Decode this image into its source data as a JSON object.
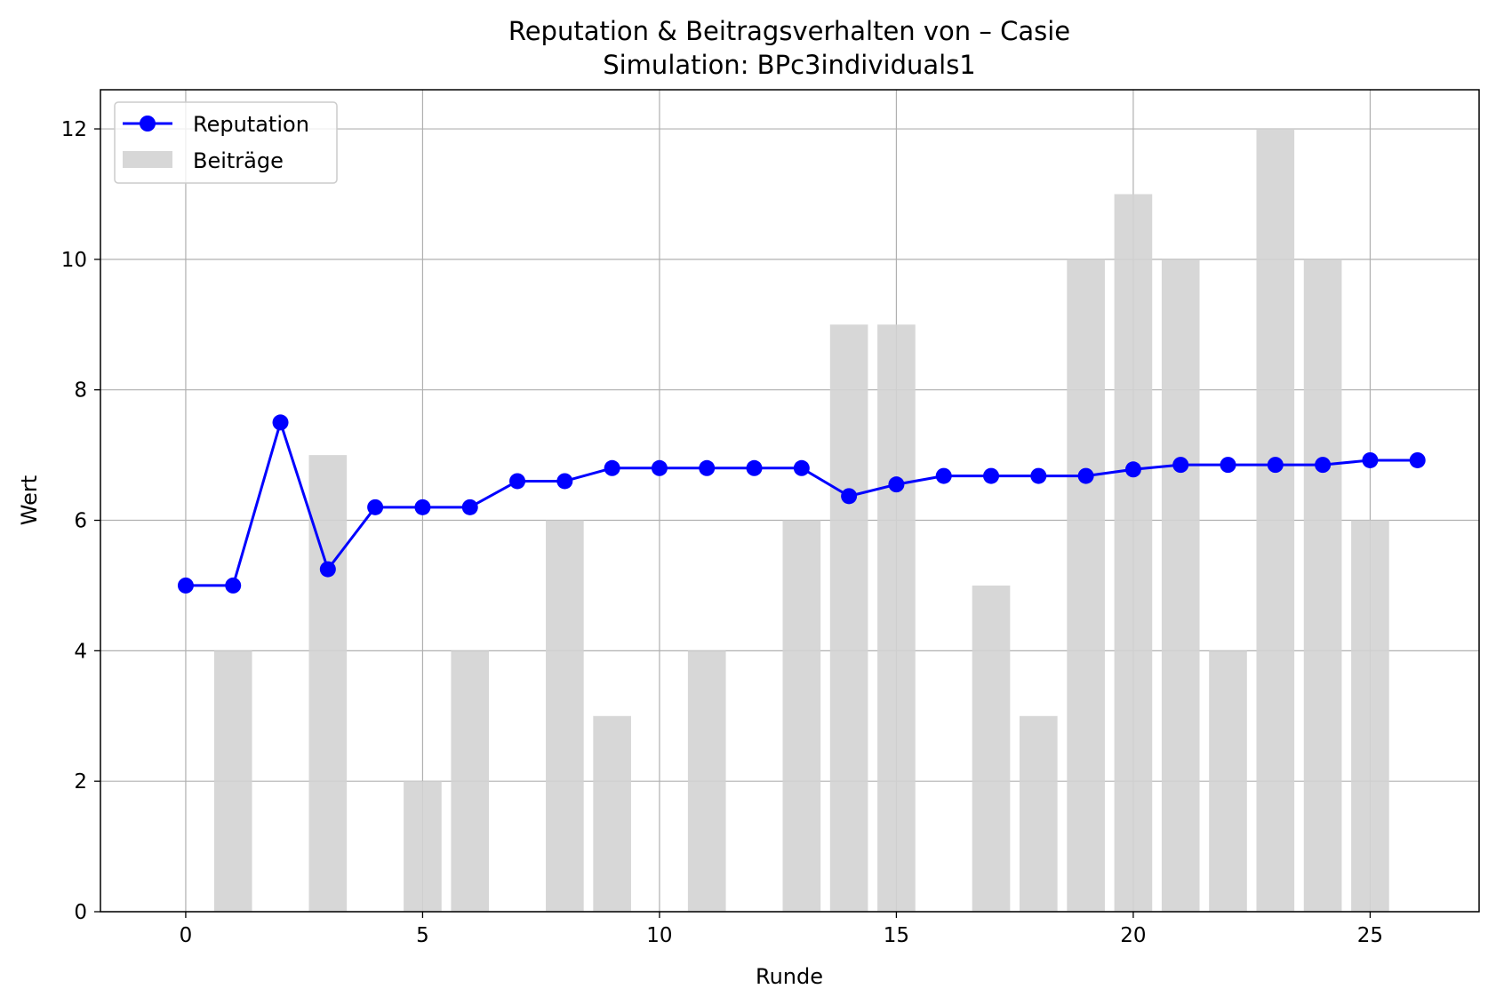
{
  "chart_data": {
    "type": "bar+line",
    "title": "Reputation & Beitragsverhalten von – Casie",
    "subtitle": "Simulation: BPc3individuals1",
    "xlabel": "Runde",
    "ylabel": "Wert",
    "xlim": [
      -1.8,
      27.3
    ],
    "ylim": [
      0,
      12.6
    ],
    "xticks": [
      0,
      5,
      10,
      15,
      20,
      25
    ],
    "yticks": [
      0,
      2,
      4,
      6,
      8,
      10,
      12
    ],
    "grid": true,
    "legend_position": "upper-left",
    "series": [
      {
        "name": "Beiträge",
        "kind": "bar",
        "color": "#d3d3d3",
        "x": [
          0,
          1,
          2,
          3,
          4,
          5,
          6,
          7,
          8,
          9,
          10,
          11,
          12,
          13,
          14,
          15,
          16,
          17,
          18,
          19,
          20,
          21,
          22,
          23,
          24,
          25
        ],
        "values": [
          0,
          4,
          0,
          7,
          0,
          2,
          4,
          0,
          6,
          3,
          0,
          4,
          0,
          6,
          9,
          9,
          0,
          5,
          3,
          10,
          11,
          10,
          4,
          12,
          10,
          6
        ]
      },
      {
        "name": "Reputation",
        "kind": "line",
        "color": "#0000ff",
        "x": [
          0,
          1,
          2,
          3,
          4,
          5,
          6,
          7,
          8,
          9,
          10,
          11,
          12,
          13,
          14,
          15,
          16,
          17,
          18,
          19,
          20,
          21,
          22,
          23,
          24,
          25,
          26
        ],
        "values": [
          5.0,
          5.0,
          7.5,
          5.25,
          6.2,
          6.2,
          6.2,
          6.6,
          6.6,
          6.8,
          6.8,
          6.8,
          6.8,
          6.8,
          6.37,
          6.55,
          6.68,
          6.68,
          6.68,
          6.68,
          6.78,
          6.85,
          6.85,
          6.85,
          6.85,
          6.92,
          6.92
        ]
      }
    ]
  }
}
